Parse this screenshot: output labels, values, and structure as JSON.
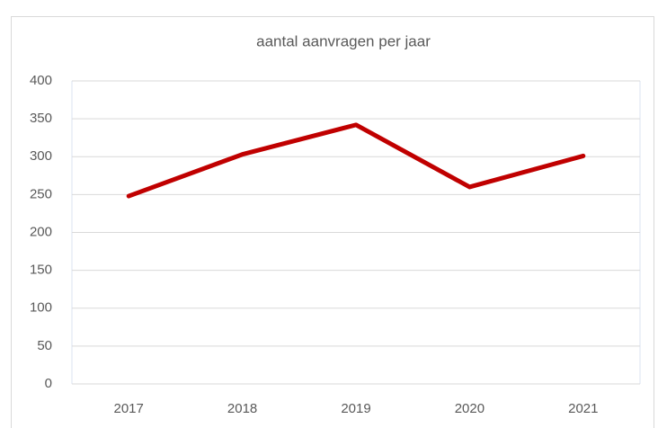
{
  "chart_data": {
    "type": "line",
    "title": "aantal aanvragen per jaar",
    "categories": [
      "2017",
      "2018",
      "2019",
      "2020",
      "2021"
    ],
    "series": [
      {
        "name": "aantal aanvragen",
        "color": "#c00000",
        "values": [
          248,
          303,
          342,
          260,
          301
        ]
      }
    ],
    "ylim": [
      0,
      400
    ],
    "yticks": [
      0,
      50,
      100,
      150,
      200,
      250,
      300,
      350,
      400
    ],
    "grid": true,
    "legend": false
  }
}
